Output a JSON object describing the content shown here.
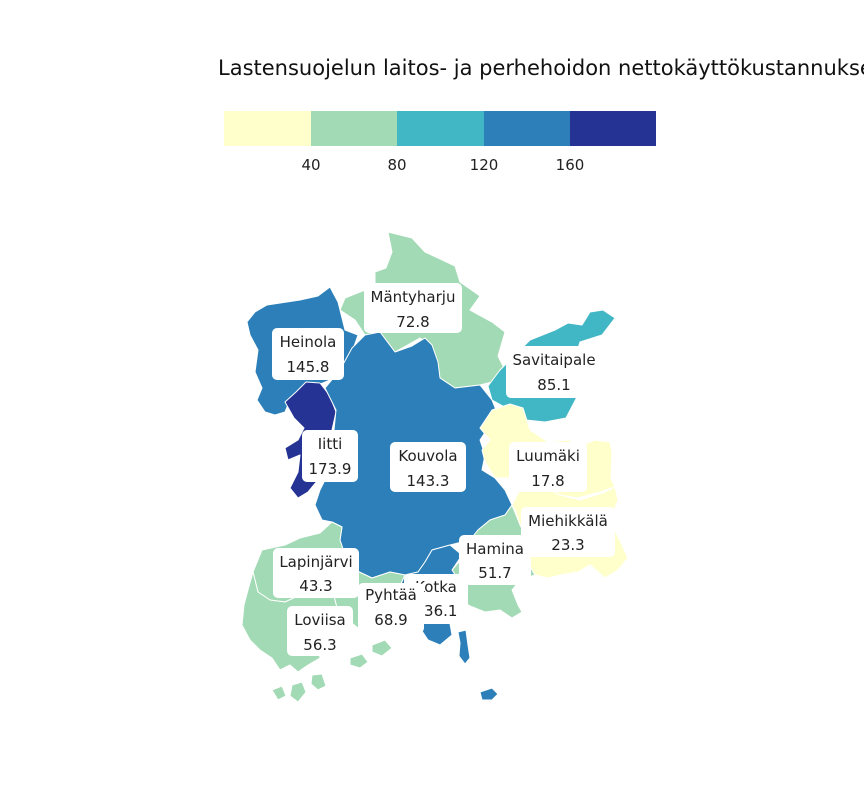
{
  "title": "Lastensuojelun laitos- ja perhehoidon nettokäyttökustannukset",
  "legend": {
    "colors": [
      "#ffffcc",
      "#a1dab4",
      "#41b6c4",
      "#2c7fb8",
      "#253494"
    ],
    "ticks": [
      "40",
      "80",
      "120",
      "160"
    ],
    "breaks": [
      40,
      80,
      120,
      160
    ]
  },
  "regions": [
    {
      "name": "Mäntyharju",
      "value": "72.8"
    },
    {
      "name": "Heinola",
      "value": "145.8"
    },
    {
      "name": "Savitaipale",
      "value": "85.1"
    },
    {
      "name": "Iitti",
      "value": "173.9"
    },
    {
      "name": "Kouvola",
      "value": "143.3"
    },
    {
      "name": "Luumäki",
      "value": "17.8"
    },
    {
      "name": "Miehikkälä",
      "value": "23.3"
    },
    {
      "name": "Hamina",
      "value": "51.7"
    },
    {
      "name": "Lapinjärvi",
      "value": "43.3"
    },
    {
      "name": "Kotka",
      "value": "136.1"
    },
    {
      "name": "Pyhtää",
      "value": "68.9"
    },
    {
      "name": "Loviisa",
      "value": "56.3"
    }
  ]
}
